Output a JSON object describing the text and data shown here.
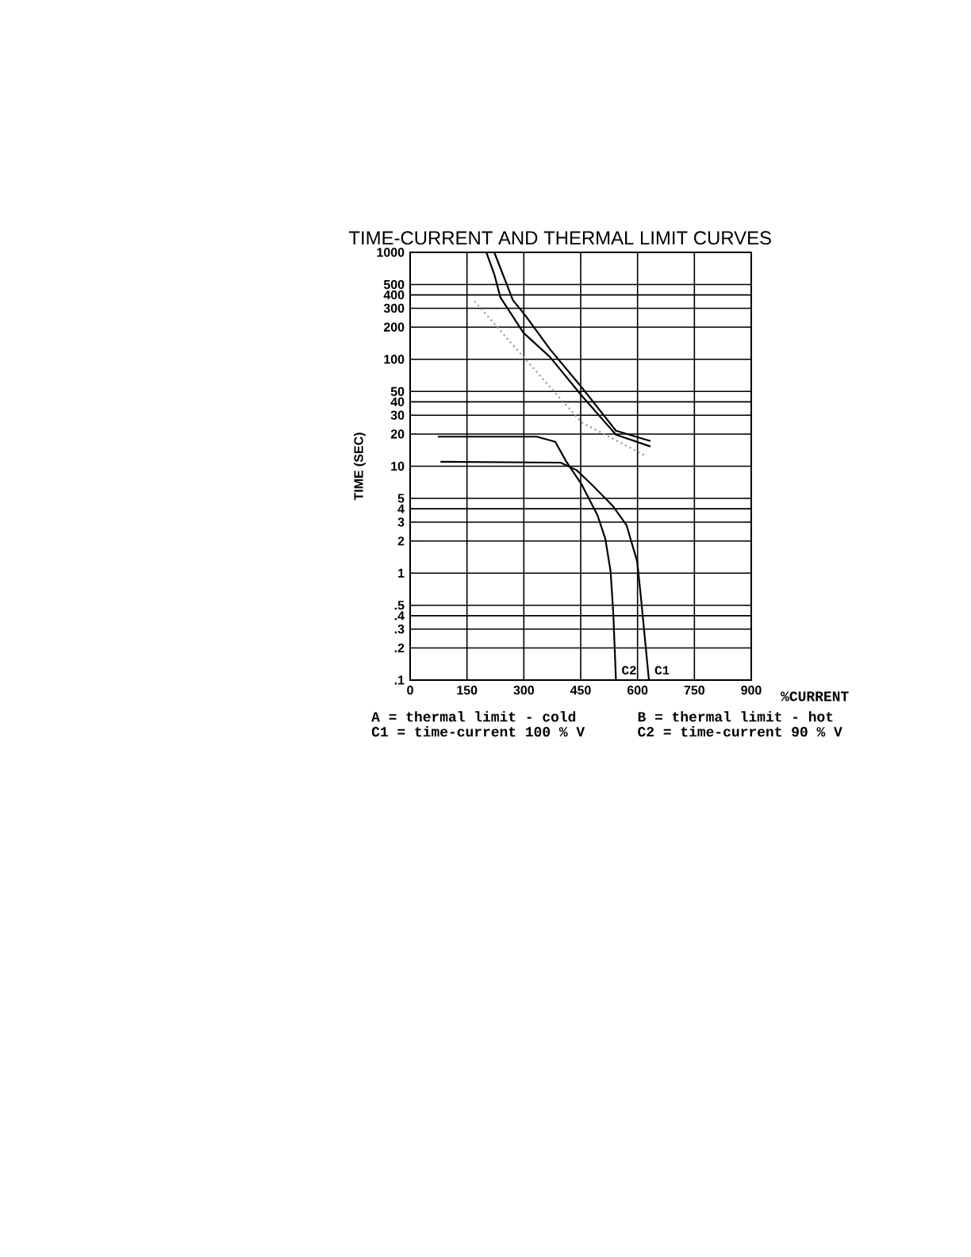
{
  "chart_data": {
    "type": "line",
    "title": "TIME-CURRENT AND THERMAL LIMIT CURVES",
    "xlabel": "%CURRENT",
    "ylabel": "TIME (SEC)",
    "xlim": [
      0,
      900
    ],
    "xticks": [
      0,
      150,
      300,
      450,
      600,
      750,
      900
    ],
    "ylim": [
      0.1,
      1000
    ],
    "log": "y",
    "yticks": [
      {
        "value": 0.1,
        "label": ".1"
      },
      {
        "value": 0.2,
        "label": ".2"
      },
      {
        "value": 0.3,
        "label": ".3"
      },
      {
        "value": 0.4,
        "label": ".4"
      },
      {
        "value": 0.5,
        "label": ".5"
      },
      1,
      2,
      3,
      4,
      5,
      10,
      20,
      30,
      40,
      50,
      100,
      200,
      300,
      400,
      500,
      1000
    ],
    "grid": true,
    "marker": "none",
    "series": [
      {
        "color": "#000000",
        "x": [
          222,
          271,
          306,
          369,
          452,
          543,
          634
        ],
        "values": [
          1000,
          358,
          251,
          124,
          55,
          21.5,
          17.2
        ]
      },
      {
        "color": "#000000",
        "x": [
          201,
          223,
          238,
          299,
          369,
          452,
          543,
          634
        ],
        "values": [
          1000,
          607,
          380,
          177,
          105,
          46,
          19.7,
          15.3
        ]
      },
      {
        "color": "#999999",
        "line_style": "dotted",
        "x": [
          170,
          299,
          452,
          620
        ],
        "values": [
          349,
          105,
          25.7,
          12.6
        ]
      },
      {
        "name": "C1",
        "color": "#000000",
        "x": [
          80,
          397,
          439,
          480,
          536,
          571,
          599,
          609,
          630
        ],
        "values": [
          11.0,
          10.8,
          9.2,
          6.7,
          4.2,
          2.8,
          1.29,
          0.59,
          0.1
        ]
      },
      {
        "name": "C2",
        "color": "#000000",
        "x": [
          73,
          334,
          383,
          411,
          452,
          494,
          515,
          529,
          536,
          543
        ],
        "values": [
          18.9,
          18.9,
          16.9,
          11.2,
          6.8,
          3.5,
          2.1,
          1.03,
          0.42,
          0.1
        ]
      }
    ],
    "annotations": [
      "A = thermal limit - cold",
      "B = thermal limit - hot",
      "C1 = time-current  100 % V",
      "C2 = time-current  90 % V"
    ]
  }
}
